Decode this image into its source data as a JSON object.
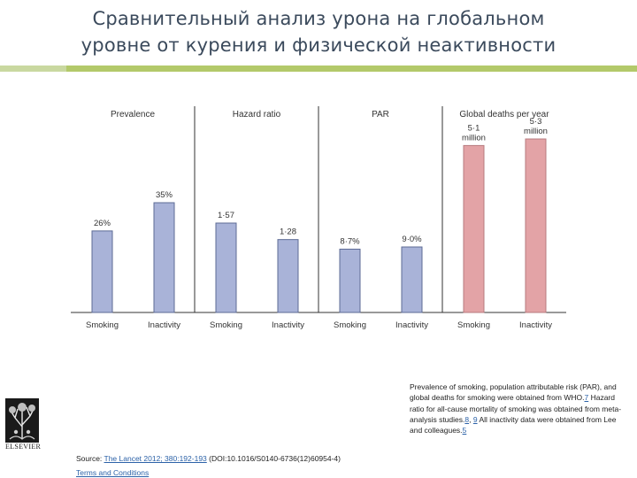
{
  "slide": {
    "title_line1": "Сравнительный анализ урона на глобальном",
    "title_line2": "уровне от курения и физической неактивности"
  },
  "chart_data": {
    "type": "bar",
    "panels": [
      {
        "title": "Prevalence",
        "categories": [
          "Smoking",
          "Inactivity"
        ],
        "values": [
          26,
          35
        ],
        "labels": [
          "26%",
          "35%"
        ],
        "unit": "%",
        "color": "#a9b3d8"
      },
      {
        "title": "Hazard ratio",
        "categories": [
          "Smoking",
          "Inactivity"
        ],
        "values": [
          1.57,
          1.28
        ],
        "labels": [
          "1·57",
          "1·28"
        ],
        "color": "#a9b3d8"
      },
      {
        "title": "PAR",
        "categories": [
          "Smoking",
          "Inactivity"
        ],
        "values": [
          8.7,
          9.0
        ],
        "labels": [
          "8·7%",
          "9·0%"
        ],
        "unit": "%",
        "color": "#a9b3d8"
      },
      {
        "title": "Global deaths per year",
        "categories": [
          "Smoking",
          "Inactivity"
        ],
        "values": [
          5.1,
          5.3
        ],
        "labels": [
          "5·1\nmillion",
          "5·3\nmillion"
        ],
        "unit": "million",
        "color": "#e3a3a6"
      }
    ],
    "bar_outline_color": "#5d6b95",
    "death_bar_outline_color": "#b77b7f",
    "grid": false,
    "legend": "none"
  },
  "caption": {
    "text_1": "Prevalence of smoking, population attributable risk (PAR), and global deaths for smoking were obtained from WHO.",
    "ref_7": "7",
    "text_2": " Hazard ratio for all-cause mortality of smoking was obtained from meta-analysis studies.",
    "ref_8": "8",
    "text_3": ", ",
    "ref_9": "9",
    "text_4": " All inactivity data were obtained from Lee and colleagues.",
    "ref_5": "5"
  },
  "source": {
    "prefix": "Source: ",
    "link_text": "The Lancet 2012; 380:192-193",
    "doi": " (DOI:10.1016/S0140-6736(12)60954-4)"
  },
  "terms": {
    "label": "Terms and Conditions"
  },
  "logo": {
    "word": "ELSEVIER"
  }
}
